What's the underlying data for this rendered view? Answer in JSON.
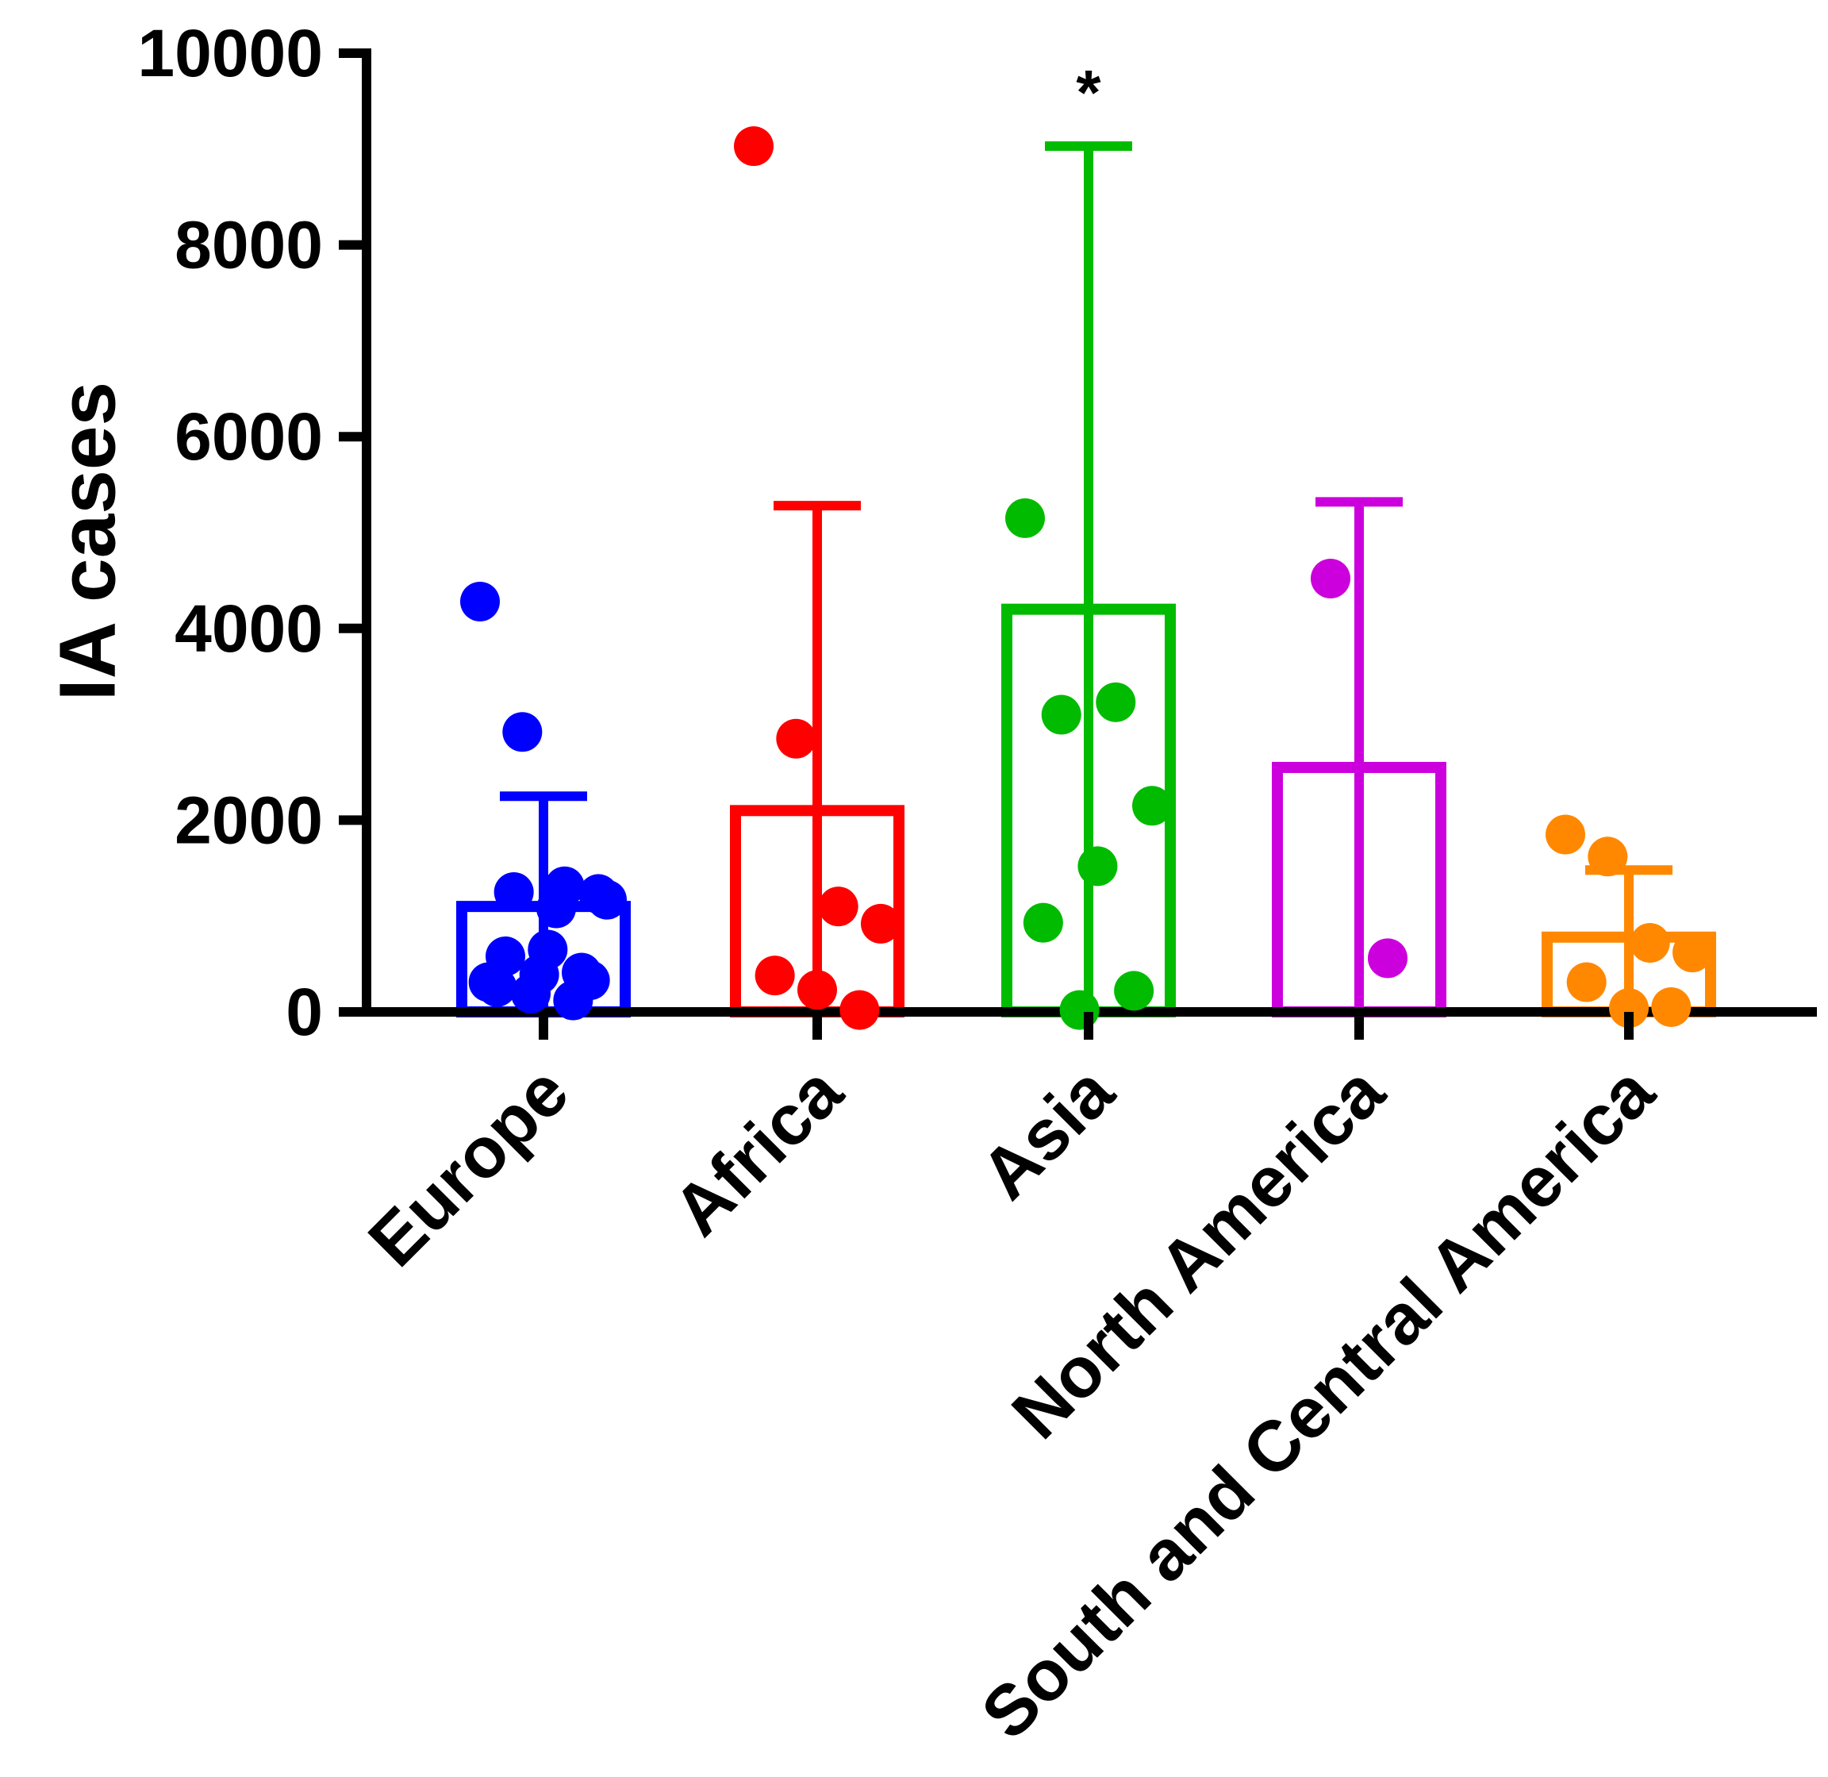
{
  "chart_data": {
    "type": "bar",
    "title": "",
    "xlabel": "",
    "ylabel": "IA cases",
    "ylim": [
      0,
      10000
    ],
    "yticks": [
      "0",
      "2000",
      "4000",
      "6000",
      "8000",
      "10000"
    ],
    "grid": false,
    "legend": "none",
    "categories": [
      "Europe",
      "Africa",
      "Asia",
      "North America",
      "South and Central America"
    ],
    "colors": [
      "#0000ff",
      "#ff0000",
      "#00bb00",
      "#cc00dd",
      "#ff8800"
    ],
    "values": [
      1100,
      2100,
      4200,
      2550,
      780
    ],
    "error_upper": [
      2250,
      5280,
      9030,
      5320,
      1480
    ],
    "points": [
      [
        4280,
        2920,
        1310,
        1170,
        1250,
        1080,
        1230,
        580,
        650,
        330,
        260,
        390,
        410,
        310,
        190,
        120
      ],
      [
        9030,
        2850,
        1100,
        920,
        380,
        230,
        20
      ],
      [
        5150,
        3230,
        3100,
        2150,
        1520,
        930,
        220,
        20
      ],
      [
        4520,
        560
      ],
      [
        1850,
        1620,
        720,
        620,
        310,
        40,
        50
      ]
    ],
    "annotations": [
      {
        "category": "Asia",
        "text": "*"
      }
    ]
  }
}
